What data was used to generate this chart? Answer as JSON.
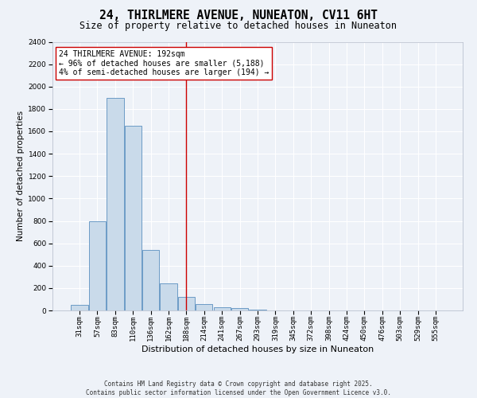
{
  "title": "24, THIRLMERE AVENUE, NUNEATON, CV11 6HT",
  "subtitle": "Size of property relative to detached houses in Nuneaton",
  "xlabel": "Distribution of detached houses by size in Nuneaton",
  "ylabel": "Number of detached properties",
  "categories": [
    "31sqm",
    "57sqm",
    "83sqm",
    "110sqm",
    "136sqm",
    "162sqm",
    "188sqm",
    "214sqm",
    "241sqm",
    "267sqm",
    "293sqm",
    "319sqm",
    "345sqm",
    "372sqm",
    "398sqm",
    "424sqm",
    "450sqm",
    "476sqm",
    "503sqm",
    "529sqm",
    "555sqm"
  ],
  "values": [
    50,
    800,
    1900,
    1650,
    540,
    240,
    120,
    55,
    30,
    20,
    10,
    0,
    0,
    0,
    0,
    0,
    0,
    0,
    0,
    0,
    0
  ],
  "bar_color": "#c9daea",
  "bar_edge_color": "#5a8fbf",
  "background_color": "#eef2f8",
  "grid_color": "#ffffff",
  "vline_x_index": 6,
  "vline_color": "#cc0000",
  "annotation_text": "24 THIRLMERE AVENUE: 192sqm\n← 96% of detached houses are smaller (5,188)\n4% of semi-detached houses are larger (194) →",
  "annotation_box_color": "#ffffff",
  "annotation_box_edge": "#cc0000",
  "ylim": [
    0,
    2400
  ],
  "yticks": [
    0,
    200,
    400,
    600,
    800,
    1000,
    1200,
    1400,
    1600,
    1800,
    2000,
    2200,
    2400
  ],
  "footer_line1": "Contains HM Land Registry data © Crown copyright and database right 2025.",
  "footer_line2": "Contains public sector information licensed under the Open Government Licence v3.0.",
  "title_fontsize": 10.5,
  "subtitle_fontsize": 8.5,
  "tick_fontsize": 6.5,
  "ylabel_fontsize": 7.5,
  "xlabel_fontsize": 8,
  "annotation_fontsize": 7,
  "footer_fontsize": 5.5
}
